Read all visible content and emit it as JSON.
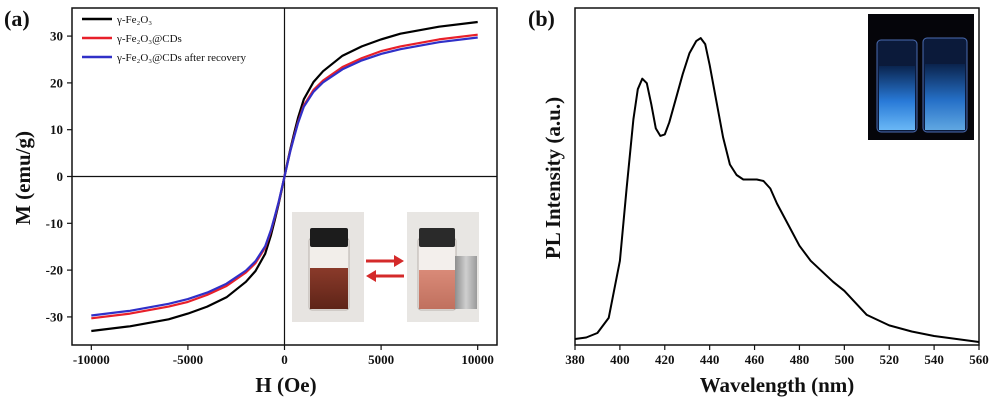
{
  "chart_data": [
    {
      "panel_label": "(a)",
      "type": "line",
      "xlabel": "H (Oe)",
      "ylabel": "M (emu/g)",
      "xlim": [
        -11000,
        11000
      ],
      "ylim": [
        -36,
        36
      ],
      "xticks": [
        -10000,
        -5000,
        0,
        5000,
        10000
      ],
      "yticks": [
        -30,
        -20,
        -10,
        0,
        10,
        20,
        30
      ],
      "zero_lines": true,
      "legend_position": "top-left",
      "series": [
        {
          "name": "γ-Fe₂O₃",
          "color": "#000000",
          "x": [
            -10000,
            -8000,
            -6000,
            -5000,
            -4000,
            -3000,
            -2000,
            -1500,
            -1000,
            -700,
            -500,
            -300,
            -150,
            0,
            150,
            300,
            500,
            700,
            1000,
            1500,
            2000,
            3000,
            4000,
            5000,
            6000,
            8000,
            10000
          ],
          "y": [
            -33.0,
            -32.0,
            -30.5,
            -29.3,
            -27.8,
            -25.8,
            -22.5,
            -20.2,
            -16.5,
            -12.5,
            -9.3,
            -5.8,
            -3.0,
            0,
            3.0,
            5.8,
            9.3,
            12.5,
            16.5,
            20.2,
            22.5,
            25.8,
            27.8,
            29.3,
            30.5,
            32.0,
            33.0
          ]
        },
        {
          "name": "γ-Fe₂O₃@CDs",
          "color": "#e8202a",
          "x": [
            -10000,
            -8000,
            -6000,
            -5000,
            -4000,
            -3000,
            -2000,
            -1500,
            -1000,
            -700,
            -500,
            -300,
            -150,
            0,
            150,
            300,
            500,
            700,
            1000,
            1500,
            2000,
            3000,
            4000,
            5000,
            6000,
            8000,
            10000
          ],
          "y": [
            -30.3,
            -29.3,
            -27.8,
            -26.8,
            -25.3,
            -23.4,
            -20.5,
            -18.5,
            -15.2,
            -11.6,
            -8.7,
            -5.5,
            -2.8,
            0,
            2.8,
            5.5,
            8.7,
            11.6,
            15.2,
            18.5,
            20.5,
            23.4,
            25.3,
            26.8,
            27.8,
            29.3,
            30.3
          ]
        },
        {
          "name": "γ-Fe₂O₃@CDs  after recovery",
          "color": "#3030c8",
          "x": [
            -10000,
            -8000,
            -6000,
            -5000,
            -4000,
            -3000,
            -2000,
            -1500,
            -1000,
            -700,
            -500,
            -300,
            -150,
            0,
            150,
            300,
            500,
            700,
            1000,
            1500,
            2000,
            3000,
            4000,
            5000,
            6000,
            8000,
            10000
          ],
          "y": [
            -29.7,
            -28.7,
            -27.2,
            -26.2,
            -24.8,
            -22.9,
            -20.1,
            -18.1,
            -14.9,
            -11.4,
            -8.5,
            -5.4,
            -2.7,
            0,
            2.7,
            5.4,
            8.5,
            11.4,
            14.9,
            18.1,
            20.1,
            22.9,
            24.8,
            26.2,
            27.2,
            28.7,
            29.7
          ]
        }
      ],
      "inset": {
        "description": "photo of vials with magnet",
        "arrow_color": "#d42a2a"
      }
    },
    {
      "panel_label": "(b)",
      "type": "line",
      "xlabel": "Wavelength (nm)",
      "ylabel": "PL Intensity (a.u.)",
      "xlim": [
        380,
        560
      ],
      "ylim": [
        0,
        1.12
      ],
      "xticks": [
        380,
        400,
        420,
        440,
        460,
        480,
        500,
        520,
        540,
        560
      ],
      "show_yticks": false,
      "series": [
        {
          "color": "#000000",
          "x": [
            380,
            385,
            390,
            395,
            400,
            403,
            406,
            408,
            410,
            412,
            414,
            416,
            418,
            420,
            422,
            425,
            428,
            431,
            434,
            436,
            438,
            440,
            443,
            446,
            449,
            452,
            455,
            458,
            461,
            464,
            467,
            470,
            475,
            480,
            485,
            490,
            495,
            500,
            505,
            510,
            520,
            530,
            540,
            550,
            560
          ],
          "y": [
            0.02,
            0.025,
            0.04,
            0.09,
            0.28,
            0.52,
            0.75,
            0.85,
            0.885,
            0.87,
            0.8,
            0.72,
            0.695,
            0.7,
            0.74,
            0.82,
            0.9,
            0.97,
            1.01,
            1.02,
            1.0,
            0.93,
            0.81,
            0.69,
            0.6,
            0.565,
            0.55,
            0.55,
            0.55,
            0.545,
            0.52,
            0.47,
            0.4,
            0.33,
            0.28,
            0.245,
            0.21,
            0.18,
            0.14,
            0.1,
            0.065,
            0.045,
            0.03,
            0.02,
            0.01
          ]
        }
      ],
      "inset": {
        "description": "photo of two fluorescent vials under UV light"
      }
    }
  ]
}
